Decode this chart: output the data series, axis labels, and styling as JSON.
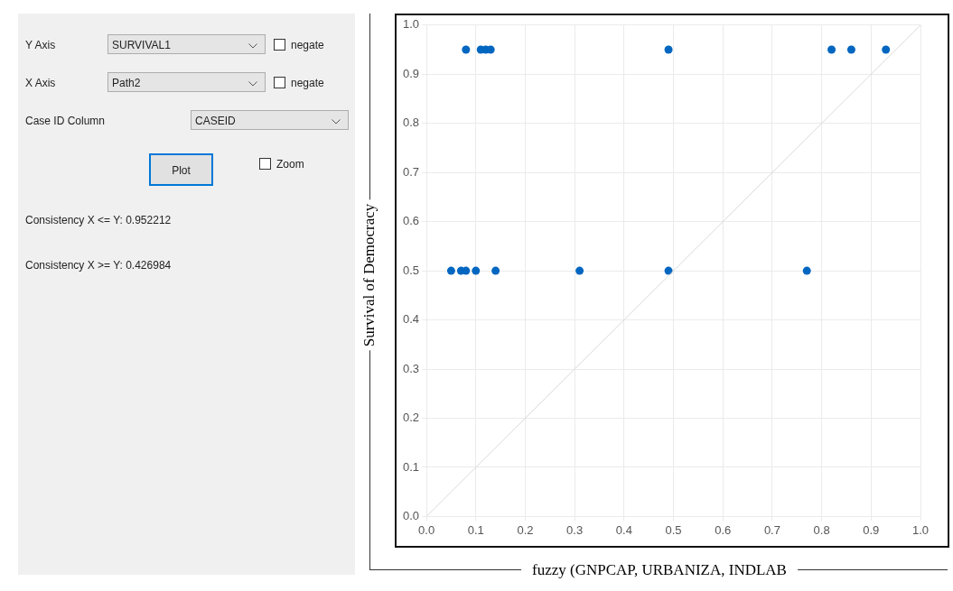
{
  "chart_data": [
    {
      "type": "other",
      "annotations": [
        "Y Axis",
        "SURVIVAL1",
        "negate",
        "X Axis",
        "Path2",
        "negate",
        "Case ID Column",
        "CASEID",
        "Plot",
        "Zoom",
        "Consistency X <= Y: 0.952212",
        "Consistency X >= Y: 0.426984"
      ]
    },
    {
      "type": "scatter",
      "xlabel": "fuzzy (GNPCAP, URBANIZA, INDLAB",
      "ylabel": "Survival of Democracy",
      "xlim": [
        0,
        1
      ],
      "ylim": [
        0,
        1
      ],
      "xticks": [
        {
          "value": 0,
          "label": "0.0"
        },
        0.1,
        0.2,
        0.3,
        0.4,
        0.5,
        0.6,
        0.7,
        0.8,
        0.9,
        {
          "value": 1,
          "label": "1.0"
        }
      ],
      "yticks": [
        {
          "value": 0,
          "label": "0.0"
        },
        0.1,
        0.2,
        0.3,
        0.4,
        0.5,
        0.6,
        0.7,
        0.8,
        0.9,
        {
          "value": 1,
          "label": "1.0"
        }
      ],
      "grid": true,
      "series": [
        {
          "type": "line",
          "marker": "none",
          "color": "#dadada",
          "x": [
            0,
            1
          ],
          "values": [
            0,
            1
          ]
        },
        {
          "type": "scatter",
          "marker": "circle",
          "color": "#0066c0",
          "x": [
            0.08,
            0.11,
            0.12,
            0.13,
            0.49,
            0.82,
            0.86,
            0.93,
            0.05,
            0.07,
            0.08,
            0.1,
            0.14,
            0.31,
            0.49,
            0.77
          ],
          "values": [
            0.95,
            0.95,
            0.95,
            0.95,
            0.95,
            0.95,
            0.95,
            0.95,
            0.5,
            0.5,
            0.5,
            0.5,
            0.5,
            0.5,
            0.5,
            0.5
          ]
        }
      ]
    }
  ]
}
